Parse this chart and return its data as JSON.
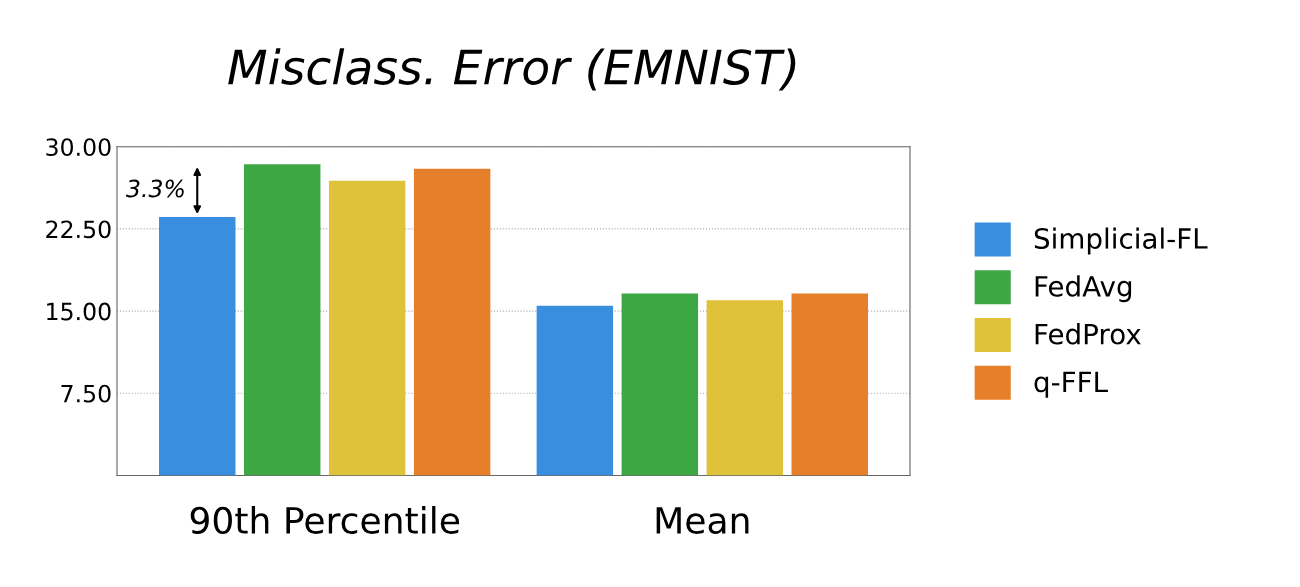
{
  "chart_data": {
    "type": "bar",
    "title": "Misclass. Error (EMNIST)",
    "categories": [
      "90th Percentile",
      "Mean"
    ],
    "series": [
      {
        "name": "Simplicial-FL",
        "color": "#3a8ee0",
        "values": [
          23.6,
          15.5
        ]
      },
      {
        "name": "FedAvg",
        "color": "#3da843",
        "values": [
          28.4,
          16.6
        ]
      },
      {
        "name": "FedProx",
        "color": "#e0c23a",
        "values": [
          26.9,
          16.0
        ]
      },
      {
        "name": "q-FFL",
        "color": "#e67f2a",
        "values": [
          28.0,
          16.6
        ]
      }
    ],
    "ylim": [
      0,
      30
    ],
    "yticks": [
      {
        "value": 7.5,
        "label": "7.50"
      },
      {
        "value": 15,
        "label": "15.00"
      },
      {
        "value": 22.5,
        "label": "22.50"
      },
      {
        "value": 30,
        "label": "30.00"
      }
    ],
    "grid": "y",
    "legend": "right",
    "annotations": [
      "3.3%"
    ]
  }
}
